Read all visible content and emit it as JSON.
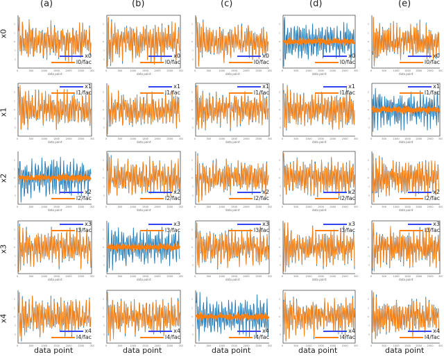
{
  "chart_data": {
    "type": "line",
    "title": "",
    "columns": [
      "(a)",
      "(b)",
      "(c)",
      "(d)",
      "(e)"
    ],
    "rows": [
      "x0",
      "x1",
      "x2",
      "x3",
      "x4"
    ],
    "xlabel": "data point",
    "xlim": [
      0,
      3000
    ],
    "xticks": [
      "0",
      "500",
      "1000",
      "1500",
      "2000",
      "2500",
      "3000"
    ],
    "ylim": [
      -3,
      3
    ],
    "yticks": [
      "-2",
      "-1",
      "0",
      "1",
      "2"
    ],
    "series_names": [
      [
        "x0",
        "l0/fac"
      ],
      [
        "x1",
        "l1/fac"
      ],
      [
        "x2",
        "l2/fac"
      ],
      [
        "x3",
        "l3/fac"
      ],
      [
        "x4",
        "l4/fac"
      ]
    ],
    "colors": {
      "signal": "#1f77b4",
      "reconstruction": "#ff7f0e",
      "legend_signal": "#3344ee"
    },
    "flat_reconstruction_panels": [
      [
        0,
        3
      ],
      [
        1,
        4
      ],
      [
        2,
        0
      ],
      [
        3,
        1
      ],
      [
        4,
        2
      ]
    ],
    "note_values": "each panel: oscillating signal x_i over data points 0–3000 with amplitude ~±2; orange l_i/fac overlays the signal except in flat panels where it stays near 0"
  }
}
